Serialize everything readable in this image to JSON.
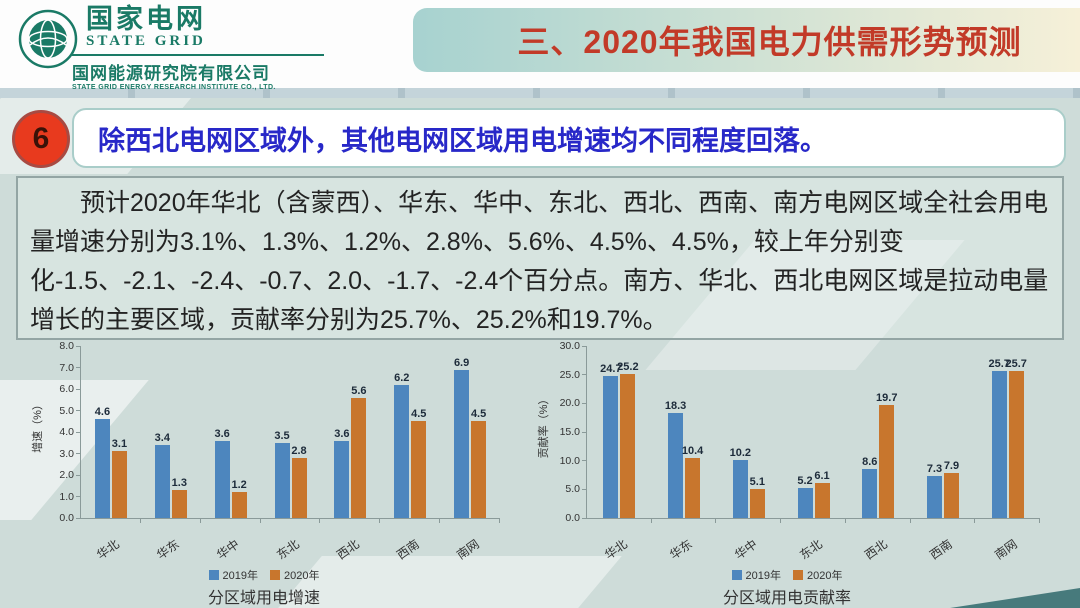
{
  "header": {
    "logo": {
      "brand_cn": "国家电网",
      "brand_en": "STATE GRID",
      "institute_cn": "国网能源研究院有限公司",
      "institute_en": "STATE GRID ENERGY RESEARCH INSTITUTE CO., LTD.",
      "brand_color": "#1a7a66"
    },
    "title": "三、2020年我国电力供需形势预测",
    "title_color": "#c23a28"
  },
  "point": {
    "number": "6",
    "heading": "除西北电网区域外，其他电网区域用电增速均不同程度回落。",
    "heading_color": "#2828c8",
    "badge_color": "#e83a1e"
  },
  "body": {
    "paragraph": "预计2020年华北（含蒙西）、华东、华中、东北、西北、西南、南方电网区域全社会用电量增速分别为3.1%、1.3%、1.2%、2.8%、5.6%、4.5%、4.5%，较上年分别变化-1.5、-2.1、-2.4、-0.7、2.0、-1.7、-2.4个百分点。南方、华北、西北电网区域是拉动电量增长的主要区域，贡献率分别为25.7%、25.2%和19.7%。"
  },
  "chart_data": [
    {
      "type": "bar",
      "title": "分区域用电增速",
      "ylabel": "增速（%）",
      "ylim": [
        0,
        8
      ],
      "ytick_step": 1,
      "grid": false,
      "legend_position": "bottom",
      "categories": [
        "华北",
        "华东",
        "华中",
        "东北",
        "西北",
        "西南",
        "南网"
      ],
      "series": [
        {
          "name": "2019年",
          "color": "#4d86be",
          "values": [
            4.6,
            3.4,
            3.6,
            3.5,
            3.6,
            6.2,
            6.9
          ]
        },
        {
          "name": "2020年",
          "color": "#c8762d",
          "values": [
            3.1,
            1.3,
            1.2,
            2.8,
            5.6,
            4.5,
            4.5
          ]
        }
      ]
    },
    {
      "type": "bar",
      "title": "分区域用电贡献率",
      "ylabel": "贡献率（%）",
      "ylim": [
        0,
        30
      ],
      "ytick_step": 5,
      "grid": false,
      "legend_position": "bottom",
      "categories": [
        "华北",
        "华东",
        "华中",
        "东北",
        "西北",
        "西南",
        "南网"
      ],
      "series": [
        {
          "name": "2019年",
          "color": "#4d86be",
          "values": [
            24.7,
            18.3,
            10.2,
            5.2,
            8.6,
            7.3,
            25.7
          ]
        },
        {
          "name": "2020年",
          "color": "#c8762d",
          "values": [
            25.2,
            10.4,
            5.1,
            6.1,
            19.7,
            7.9,
            25.7
          ]
        }
      ]
    }
  ]
}
